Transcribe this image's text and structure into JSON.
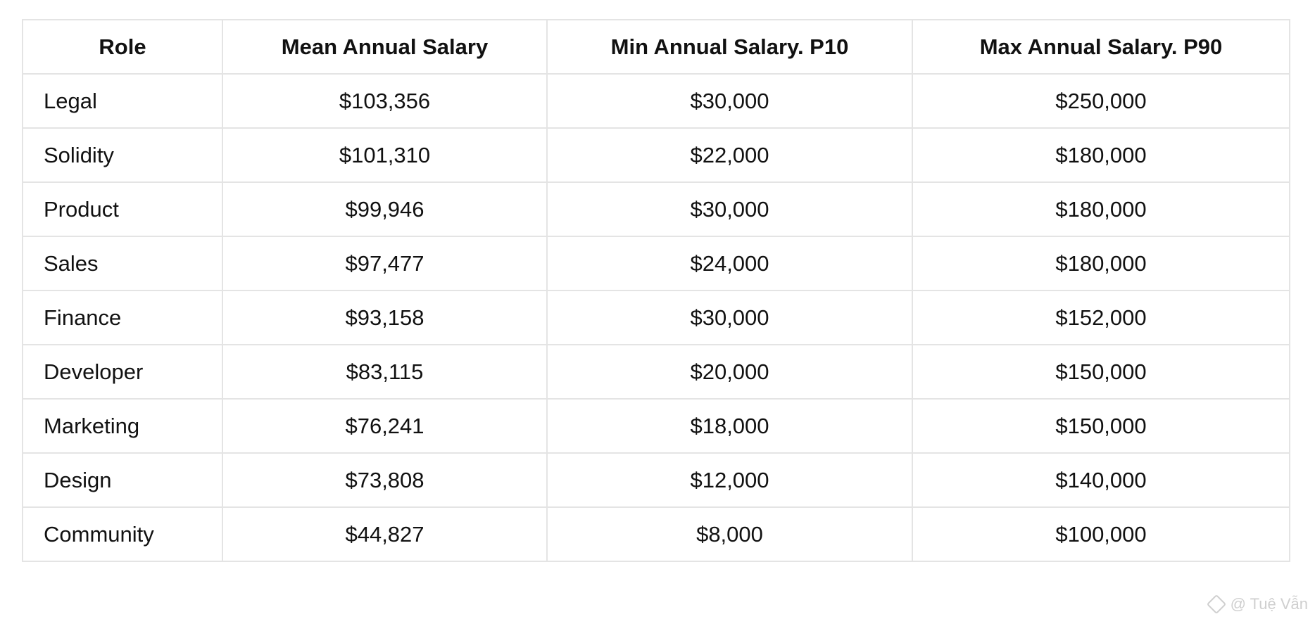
{
  "table": {
    "headers": [
      "Role",
      "Mean Annual Salary",
      "Min Annual Salary. P10",
      "Max Annual Salary. P90"
    ],
    "rows": [
      [
        "Legal",
        "$103,356",
        "$30,000",
        "$250,000"
      ],
      [
        "Solidity",
        "$101,310",
        "$22,000",
        "$180,000"
      ],
      [
        "Product",
        "$99,946",
        "$30,000",
        "$180,000"
      ],
      [
        "Sales",
        "$97,477",
        "$24,000",
        "$180,000"
      ],
      [
        "Finance",
        "$93,158",
        "$30,000",
        "$152,000"
      ],
      [
        "Developer",
        "$83,115",
        "$20,000",
        "$150,000"
      ],
      [
        "Marketing",
        "$76,241",
        "$18,000",
        "$150,000"
      ],
      [
        "Design",
        "$73,808",
        "$12,000",
        "$140,000"
      ],
      [
        "Community",
        "$44,827",
        "$8,000",
        "$100,000"
      ]
    ]
  },
  "watermark": {
    "text": "@ Tuệ Vẫn",
    "icon": "watermark-logo-icon"
  }
}
